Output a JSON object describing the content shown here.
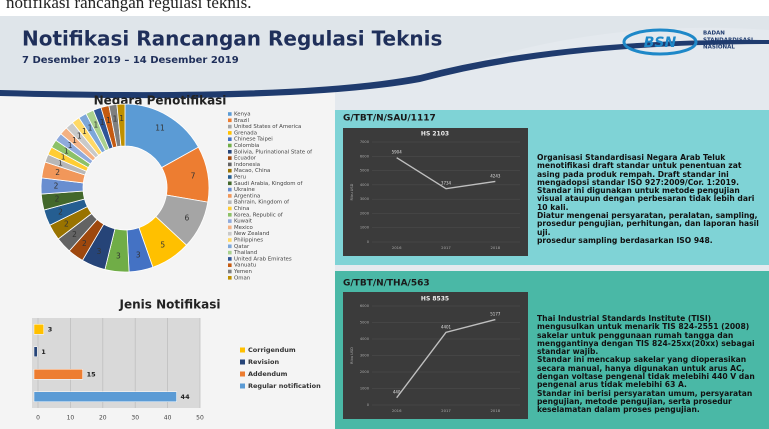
{
  "top_text": "notifikasi rancangan regulasi teknis.",
  "header": {
    "title": "Notifikasi Rancangan Regulasi Teknis",
    "date": "7 Desember 2019 – 14 Desember 2019",
    "logo_text": "BSN",
    "logo_caption": [
      "BADAN",
      "STANDARDISASI",
      "NASIONAL"
    ]
  },
  "chart_data": [
    {
      "type": "donut",
      "title": "Negara Penotifikasi",
      "categories": [
        "Kenya",
        "Brazil",
        "United States of America",
        "Grenada",
        "Chinese Taipei",
        "Colombia",
        "Bolivia, Plurinational State of",
        "Ecuador",
        "Indonesia",
        "Macao, China",
        "Peru",
        "Saudi Arabia, Kingdom of",
        "Ukraine",
        "Argentina",
        "Bahrain, Kingdom of",
        "China",
        "Korea, Republic of",
        "Kuwait",
        "Mexico",
        "New Zealand",
        "Philippines",
        "Qatar",
        "Thailand",
        "United Arab Emirates",
        "Vanuatu",
        "Yemen",
        "Oman"
      ],
      "values": [
        11,
        7,
        6,
        5,
        3,
        3,
        3,
        2,
        2,
        2,
        2,
        2,
        2,
        2,
        1,
        1,
        1,
        1,
        1,
        1,
        1,
        1,
        1,
        1,
        1,
        1,
        1
      ],
      "colors": [
        "#5b9bd5",
        "#ed7d31",
        "#a5a5a5",
        "#ffc000",
        "#4472c4",
        "#70ad47",
        "#264478",
        "#9e480e",
        "#636363",
        "#997300",
        "#255e91",
        "#43682b",
        "#698ed0",
        "#f1975a",
        "#b7b7b7",
        "#ffcd33",
        "#8cc168",
        "#8faadc",
        "#f4b183",
        "#c9c9c9",
        "#ffd966",
        "#7da7d9",
        "#a9d18e",
        "#2f5597",
        "#c55a11",
        "#7f7f7f",
        "#bf9000"
      ],
      "legend": "right"
    },
    {
      "type": "hbar",
      "title": "Jenis Notifikasi",
      "categories": [
        "Corrigendum",
        "Revision",
        "Addendum",
        "Regular notification"
      ],
      "values": [
        3,
        1,
        15,
        44
      ],
      "colors": [
        "#ffc000",
        "#264478",
        "#ed7d31",
        "#5b9bd5"
      ],
      "xlim": [
        0,
        50
      ],
      "xticks": [
        0,
        10,
        20,
        30,
        40,
        50
      ],
      "grid": true,
      "legend": "right"
    },
    {
      "type": "line",
      "title": "HS 2103",
      "categories": [
        "2016",
        "2017",
        "2018"
      ],
      "values": [
        5904,
        3734,
        4243
      ],
      "color": "#bfbfbf",
      "ylim": [
        0,
        7000
      ],
      "yticks": [
        0,
        1000,
        2000,
        3000,
        4000,
        5000,
        6000,
        7000
      ],
      "y_label": "Ribu USD"
    },
    {
      "type": "line",
      "title": "HS 8535",
      "categories": [
        "2016",
        "2017",
        "2018"
      ],
      "values": [
        440,
        4401,
        5177
      ],
      "color": "#bfbfbf",
      "ylim": [
        0,
        6000
      ],
      "yticks": [
        0,
        1000,
        2000,
        3000,
        4000,
        5000,
        6000
      ],
      "y_label": "Ribu USD"
    }
  ],
  "panels": [
    {
      "code": "G/TBT/N/SAU/1117",
      "paragraphs": [
        "Organisasi Standardisasi Negara Arab Teluk menotifikasi draft standar untuk penentuan zat asing pada produk rempah. Draft standar ini mengadopsi standar ISO 927:2009/Cor. 1:2019.",
        "Standar ini digunakan untuk metode pengujian visual ataupun dengan perbesaran tidak lebih dari 10 kali.",
        "Diatur mengenai persyaratan, peralatan, sampling, prosedur pengujian, perhitungan, dan laporan hasil uji.",
        "prosedur sampling berdasarkan ISO 948."
      ]
    },
    {
      "code": "G/TBT/N/THA/563",
      "paragraphs": [
        "Thai Industrial Standards Institute (TISI) mengusulkan untuk menarik TIS 824-2551 (2008) sakelar untuk penggunaan rumah tangga dan menggantinya dengan TIS 824-25xx(20xx) sebagai standar wajib.",
        "Standar ini mencakup sakelar yang dioperasikan secara manual, hanya digunakan untuk arus AC, dengan voltase pengenal tidak melebihi 440 V dan pengenal arus tidak melebihi 63 A.",
        "Standar ini berisi persyaratan umum, persyaratan pengujian, metode pengujian, serta prosedur keselamatan dalam proses pengujian."
      ]
    }
  ]
}
